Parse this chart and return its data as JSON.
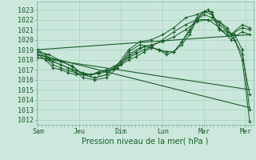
{
  "background_color": "#cce8dc",
  "grid_color_major": "#a8d0c0",
  "grid_color_minor": "#b8dccb",
  "line_color": "#1a5e2a",
  "xlabel_text": "Pression niveau de la mer( hPa )",
  "x_tick_labels": [
    "Sam",
    "Jeu",
    "Dim",
    "Lun",
    "Mar",
    "Mer"
  ],
  "ylim": [
    1011.5,
    1023.8
  ],
  "yticks": [
    1012,
    1013,
    1014,
    1015,
    1016,
    1017,
    1018,
    1019,
    1020,
    1021,
    1022,
    1023
  ],
  "series": [
    {
      "x": [
        0.0,
        0.18,
        0.36,
        0.55,
        0.73,
        0.91,
        1.09,
        1.27,
        1.46,
        1.64,
        1.82,
        2.0,
        2.18,
        2.36,
        2.55,
        2.73,
        2.91,
        3.09,
        3.27,
        3.46,
        3.64,
        3.82,
        4.0,
        4.18,
        4.36,
        4.55,
        4.73,
        4.91,
        5.09
      ],
      "y": [
        1018.8,
        1018.3,
        1017.5,
        1017.2,
        1016.9,
        1016.7,
        1016.6,
        1016.5,
        1016.6,
        1016.8,
        1017.0,
        1017.5,
        1018.0,
        1018.3,
        1018.8,
        1019.2,
        1019.0,
        1018.5,
        1018.8,
        1019.5,
        1020.5,
        1022.0,
        1022.5,
        1022.2,
        1021.8,
        1021.2,
        1020.0,
        1018.0,
        1011.8
      ],
      "marker": true
    },
    {
      "x": [
        0.0,
        0.18,
        0.36,
        0.55,
        0.73,
        0.91,
        1.09,
        1.27,
        1.46,
        1.64,
        1.82,
        2.0,
        2.18,
        2.36,
        2.55,
        2.73,
        2.91,
        3.09,
        3.27,
        3.46,
        3.64,
        3.82,
        4.0,
        4.18,
        4.36,
        4.55,
        4.73,
        4.91,
        5.09
      ],
      "y": [
        1019.0,
        1018.5,
        1017.8,
        1017.5,
        1017.2,
        1016.9,
        1016.7,
        1016.5,
        1016.8,
        1017.0,
        1017.3,
        1017.8,
        1018.3,
        1018.8,
        1019.3,
        1019.2,
        1019.0,
        1018.8,
        1018.8,
        1019.8,
        1021.0,
        1022.2,
        1022.8,
        1022.5,
        1021.0,
        1020.8,
        1020.5,
        1019.0,
        1013.0
      ],
      "marker": true
    },
    {
      "x": [
        0.0,
        0.18,
        0.36,
        0.55,
        0.73,
        0.91,
        1.09,
        1.27,
        1.46,
        1.64,
        1.82,
        2.0,
        2.18,
        2.36,
        2.55,
        2.73,
        2.91,
        3.09,
        3.27,
        3.46,
        3.64,
        3.82,
        4.0,
        4.18,
        4.36,
        4.55,
        4.73,
        4.91,
        5.09
      ],
      "y": [
        1018.5,
        1018.0,
        1017.2,
        1017.0,
        1016.7,
        1016.5,
        1016.5,
        1016.5,
        1016.7,
        1016.9,
        1017.1,
        1017.6,
        1018.2,
        1018.6,
        1019.0,
        1019.3,
        1018.9,
        1018.8,
        1018.8,
        1019.8,
        1020.8,
        1022.0,
        1022.8,
        1022.8,
        1021.0,
        1020.5,
        1020.0,
        1018.5,
        1014.5
      ],
      "marker": true
    },
    {
      "x": [
        0.0,
        0.27,
        0.55,
        0.82,
        1.09,
        1.36,
        1.64,
        1.91,
        2.18,
        2.45,
        2.73,
        3.0,
        3.27,
        3.55,
        3.82,
        4.09,
        4.36,
        4.64,
        4.91,
        5.09
      ],
      "y": [
        1018.5,
        1018.2,
        1017.8,
        1017.4,
        1016.5,
        1016.2,
        1016.5,
        1017.5,
        1018.5,
        1019.2,
        1019.5,
        1019.8,
        1020.3,
        1021.0,
        1021.8,
        1022.0,
        1021.8,
        1020.5,
        1021.2,
        1021.0
      ],
      "marker": true
    },
    {
      "x": [
        0.0,
        0.27,
        0.55,
        0.82,
        1.09,
        1.36,
        1.64,
        1.91,
        2.18,
        2.45,
        2.73,
        3.0,
        3.27,
        3.55,
        3.82,
        4.09,
        4.36,
        4.64,
        4.91,
        5.09
      ],
      "y": [
        1018.2,
        1018.0,
        1017.5,
        1017.0,
        1016.2,
        1016.0,
        1016.2,
        1017.2,
        1018.8,
        1019.5,
        1019.3,
        1020.0,
        1020.8,
        1021.5,
        1022.0,
        1022.0,
        1021.2,
        1020.0,
        1020.8,
        1020.5
      ],
      "marker": true
    },
    {
      "x": [
        0.0,
        0.27,
        0.55,
        0.82,
        1.09,
        1.36,
        1.64,
        1.91,
        2.18,
        2.45,
        2.73,
        3.0,
        3.27,
        3.55,
        3.82,
        4.09,
        4.36,
        4.64,
        4.91,
        5.09
      ],
      "y": [
        1018.8,
        1018.5,
        1017.9,
        1017.3,
        1016.5,
        1016.2,
        1016.5,
        1017.5,
        1019.0,
        1019.8,
        1020.0,
        1020.5,
        1021.2,
        1022.2,
        1022.5,
        1023.0,
        1021.5,
        1020.5,
        1021.5,
        1021.2
      ],
      "marker": true
    },
    {
      "x": [
        0.0,
        5.1
      ],
      "y": [
        1019.0,
        1020.5
      ],
      "marker": false
    },
    {
      "x": [
        0.0,
        5.1
      ],
      "y": [
        1018.2,
        1015.0
      ],
      "marker": false
    },
    {
      "x": [
        0.0,
        5.1
      ],
      "y": [
        1018.5,
        1013.2
      ],
      "marker": false
    }
  ]
}
